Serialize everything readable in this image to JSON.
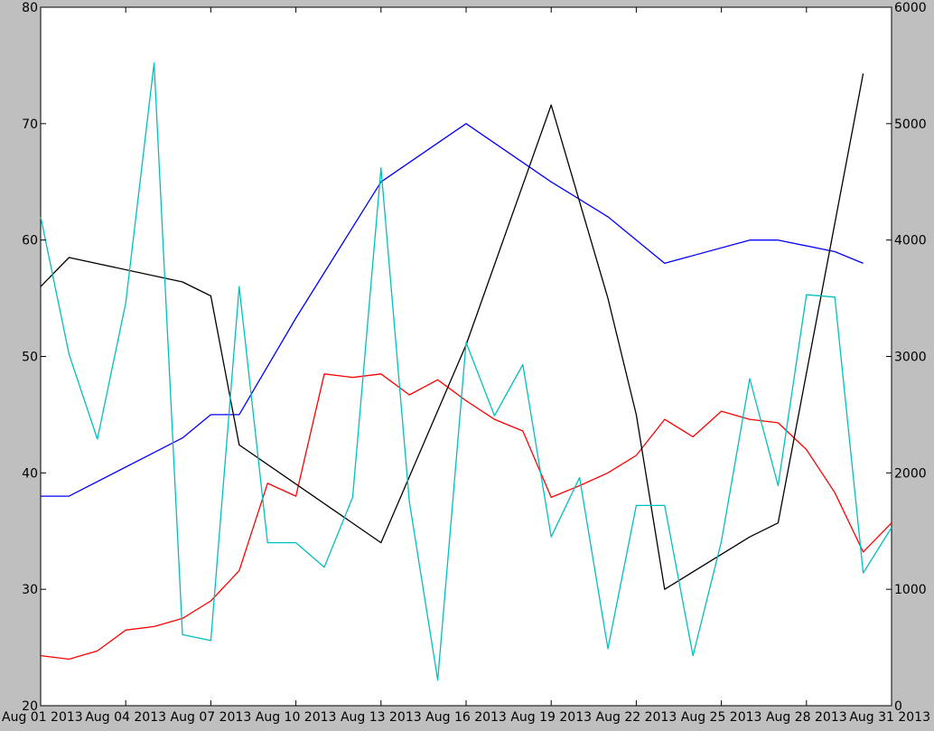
{
  "chart_data": {
    "type": "line",
    "title": "",
    "xlabel": "",
    "ylabel": "",
    "ylabel_right": "",
    "x": [
      "2013-08-01",
      "2013-08-02",
      "2013-08-03",
      "2013-08-04",
      "2013-08-05",
      "2013-08-06",
      "2013-08-07",
      "2013-08-08",
      "2013-08-09",
      "2013-08-10",
      "2013-08-11",
      "2013-08-12",
      "2013-08-13",
      "2013-08-14",
      "2013-08-15",
      "2013-08-16",
      "2013-08-17",
      "2013-08-18",
      "2013-08-19",
      "2013-08-20",
      "2013-08-21",
      "2013-08-22",
      "2013-08-23",
      "2013-08-24",
      "2013-08-25",
      "2013-08-26",
      "2013-08-27",
      "2013-08-28",
      "2013-08-29",
      "2013-08-30",
      "2013-08-31"
    ],
    "x_ticks": [
      "Aug 01 2013",
      "Aug 04 2013",
      "Aug 07 2013",
      "Aug 10 2013",
      "Aug 13 2013",
      "Aug 16 2013",
      "Aug 19 2013",
      "Aug 22 2013",
      "Aug 25 2013",
      "Aug 28 2013",
      "Aug 31 2013"
    ],
    "x_tick_dates": [
      "2013-08-01",
      "2013-08-04",
      "2013-08-07",
      "2013-08-10",
      "2013-08-13",
      "2013-08-16",
      "2013-08-19",
      "2013-08-22",
      "2013-08-25",
      "2013-08-28",
      "2013-08-31"
    ],
    "xlim": [
      "2013-08-01",
      "2013-08-31"
    ],
    "ylim_left": [
      20,
      80
    ],
    "yticks_left": [
      20,
      30,
      40,
      50,
      60,
      70,
      80
    ],
    "ylim_right": [
      0,
      6000
    ],
    "yticks_right": [
      0,
      1000,
      2000,
      3000,
      4000,
      5000,
      6000
    ],
    "grid": false,
    "series": [
      {
        "color": "#0000ff",
        "axis": "left",
        "values": [
          38,
          38,
          null,
          null,
          null,
          43,
          45,
          45,
          null,
          53.3,
          null,
          null,
          65,
          null,
          null,
          70,
          null,
          null,
          65,
          null,
          62,
          null,
          58,
          null,
          null,
          60,
          60,
          null,
          59,
          58,
          null
        ]
      },
      {
        "color": "#ff0000",
        "axis": "left",
        "values": [
          24.3,
          24,
          24.7,
          26.5,
          26.8,
          27.5,
          29,
          31.6,
          39.1,
          38,
          48.5,
          48.2,
          48.5,
          46.7,
          48,
          46.2,
          44.6,
          43.6,
          37.9,
          38.9,
          40,
          41.5,
          44.6,
          43.1,
          45.3,
          44.6,
          44.3,
          42,
          38.3,
          33.2,
          35.7
        ]
      },
      {
        "color": "#000000",
        "axis": "right",
        "values": [
          3600,
          3850,
          null,
          null,
          null,
          3640,
          3520,
          2240,
          null,
          null,
          null,
          null,
          1400,
          null,
          null,
          3100,
          null,
          null,
          5160,
          null,
          3500,
          2500,
          1000,
          null,
          null,
          1450,
          1570,
          null,
          null,
          5430,
          null
        ]
      },
      {
        "color": "#00bfbf",
        "axis": "right",
        "values": [
          4200,
          3020,
          2290,
          3460,
          5520,
          610,
          560,
          3600,
          1400,
          1400,
          1190,
          1790,
          4620,
          1750,
          220,
          3120,
          2490,
          2930,
          1450,
          1960,
          490,
          1720,
          1720,
          430,
          1410,
          2810,
          1890,
          3530,
          3510,
          1140,
          1530
        ]
      }
    ]
  }
}
